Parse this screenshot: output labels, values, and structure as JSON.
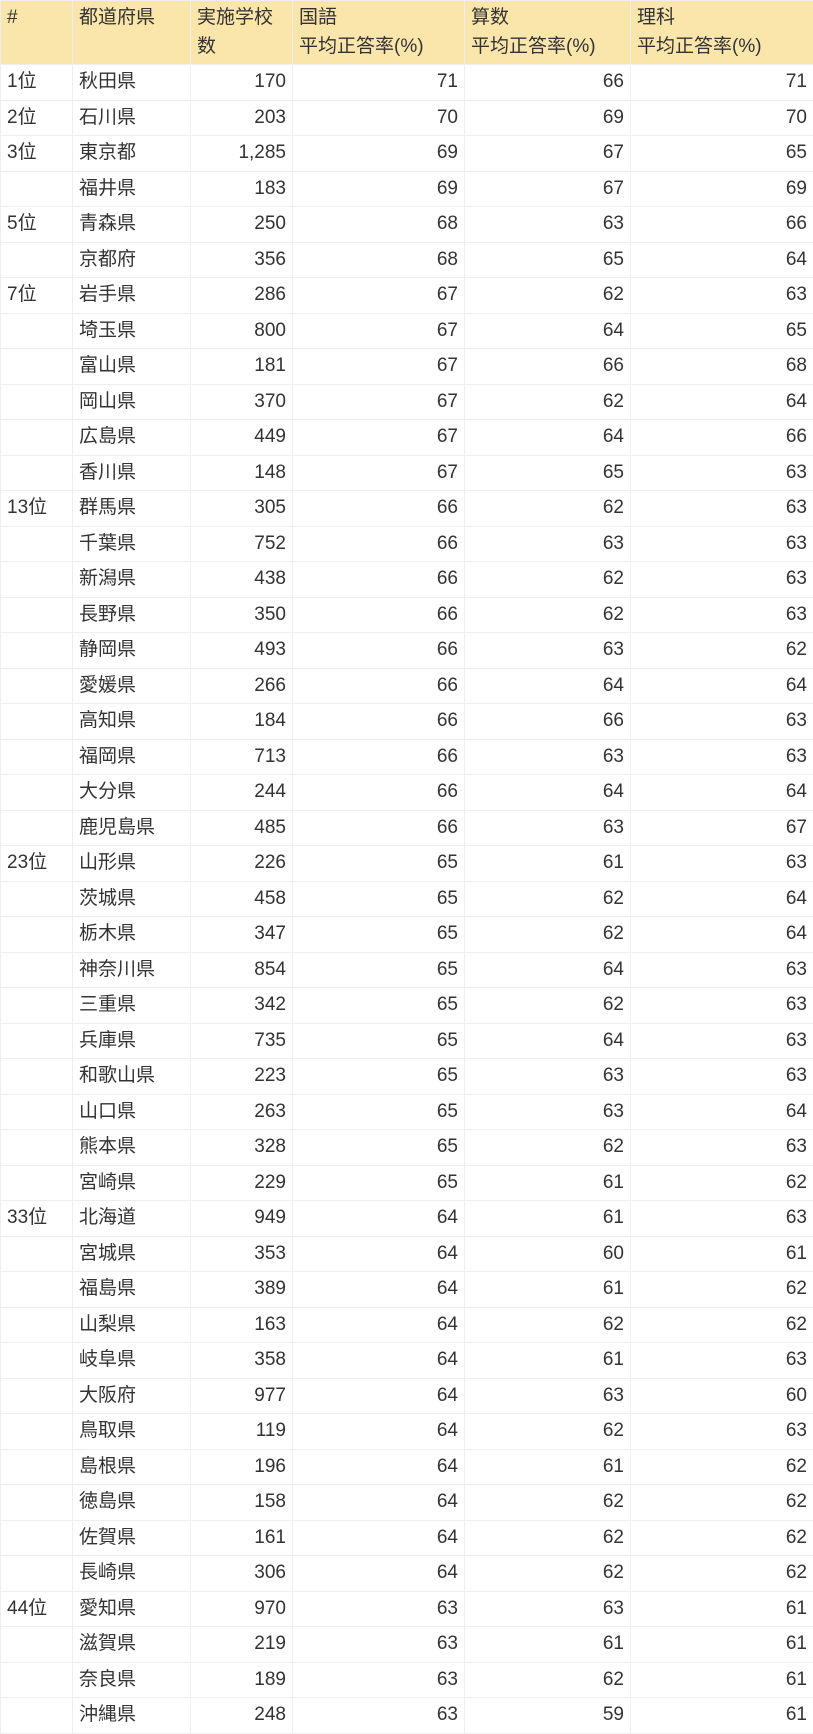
{
  "table": {
    "header_bg": "#fae5ab",
    "border_color": "#eeeeee",
    "text_color": "#333333",
    "columns": [
      {
        "key": "rank",
        "label_line1": "#",
        "label_line2": "",
        "align": "left"
      },
      {
        "key": "pref",
        "label_line1": "都道府県",
        "label_line2": "",
        "align": "left"
      },
      {
        "key": "schools",
        "label_line1": "実施学校数",
        "label_line2": "",
        "align": "right"
      },
      {
        "key": "kokugo",
        "label_line1": "国語",
        "label_line2": "平均正答率(%)",
        "align": "right"
      },
      {
        "key": "sansu",
        "label_line1": "算数",
        "label_line2": "平均正答率(%)",
        "align": "right"
      },
      {
        "key": "rika",
        "label_line1": "理科",
        "label_line2": "平均正答率(%)",
        "align": "right"
      }
    ],
    "rows": [
      {
        "rank": "1位",
        "pref": "秋田県",
        "schools": "170",
        "kokugo": "71",
        "sansu": "66",
        "rika": "71"
      },
      {
        "rank": "2位",
        "pref": "石川県",
        "schools": "203",
        "kokugo": "70",
        "sansu": "69",
        "rika": "70"
      },
      {
        "rank": "3位",
        "pref": "東京都",
        "schools": "1,285",
        "kokugo": "69",
        "sansu": "67",
        "rika": "65"
      },
      {
        "rank": "",
        "pref": "福井県",
        "schools": "183",
        "kokugo": "69",
        "sansu": "67",
        "rika": "69"
      },
      {
        "rank": "5位",
        "pref": "青森県",
        "schools": "250",
        "kokugo": "68",
        "sansu": "63",
        "rika": "66"
      },
      {
        "rank": "",
        "pref": "京都府",
        "schools": "356",
        "kokugo": "68",
        "sansu": "65",
        "rika": "64"
      },
      {
        "rank": "7位",
        "pref": "岩手県",
        "schools": "286",
        "kokugo": "67",
        "sansu": "62",
        "rika": "63"
      },
      {
        "rank": "",
        "pref": "埼玉県",
        "schools": "800",
        "kokugo": "67",
        "sansu": "64",
        "rika": "65"
      },
      {
        "rank": "",
        "pref": "富山県",
        "schools": "181",
        "kokugo": "67",
        "sansu": "66",
        "rika": "68"
      },
      {
        "rank": "",
        "pref": "岡山県",
        "schools": "370",
        "kokugo": "67",
        "sansu": "62",
        "rika": "64"
      },
      {
        "rank": "",
        "pref": "広島県",
        "schools": "449",
        "kokugo": "67",
        "sansu": "64",
        "rika": "66"
      },
      {
        "rank": "",
        "pref": "香川県",
        "schools": "148",
        "kokugo": "67",
        "sansu": "65",
        "rika": "63"
      },
      {
        "rank": "13位",
        "pref": "群馬県",
        "schools": "305",
        "kokugo": "66",
        "sansu": "62",
        "rika": "63"
      },
      {
        "rank": "",
        "pref": "千葉県",
        "schools": "752",
        "kokugo": "66",
        "sansu": "63",
        "rika": "63"
      },
      {
        "rank": "",
        "pref": "新潟県",
        "schools": "438",
        "kokugo": "66",
        "sansu": "62",
        "rika": "63"
      },
      {
        "rank": "",
        "pref": "長野県",
        "schools": "350",
        "kokugo": "66",
        "sansu": "62",
        "rika": "63"
      },
      {
        "rank": "",
        "pref": "静岡県",
        "schools": "493",
        "kokugo": "66",
        "sansu": "63",
        "rika": "62"
      },
      {
        "rank": "",
        "pref": "愛媛県",
        "schools": "266",
        "kokugo": "66",
        "sansu": "64",
        "rika": "64"
      },
      {
        "rank": "",
        "pref": "高知県",
        "schools": "184",
        "kokugo": "66",
        "sansu": "66",
        "rika": "63"
      },
      {
        "rank": "",
        "pref": "福岡県",
        "schools": "713",
        "kokugo": "66",
        "sansu": "63",
        "rika": "63"
      },
      {
        "rank": "",
        "pref": "大分県",
        "schools": "244",
        "kokugo": "66",
        "sansu": "64",
        "rika": "64"
      },
      {
        "rank": "",
        "pref": "鹿児島県",
        "schools": "485",
        "kokugo": "66",
        "sansu": "63",
        "rika": "67"
      },
      {
        "rank": "23位",
        "pref": "山形県",
        "schools": "226",
        "kokugo": "65",
        "sansu": "61",
        "rika": "63"
      },
      {
        "rank": "",
        "pref": "茨城県",
        "schools": "458",
        "kokugo": "65",
        "sansu": "62",
        "rika": "64"
      },
      {
        "rank": "",
        "pref": "栃木県",
        "schools": "347",
        "kokugo": "65",
        "sansu": "62",
        "rika": "64"
      },
      {
        "rank": "",
        "pref": "神奈川県",
        "schools": "854",
        "kokugo": "65",
        "sansu": "64",
        "rika": "63"
      },
      {
        "rank": "",
        "pref": "三重県",
        "schools": "342",
        "kokugo": "65",
        "sansu": "62",
        "rika": "63"
      },
      {
        "rank": "",
        "pref": "兵庫県",
        "schools": "735",
        "kokugo": "65",
        "sansu": "64",
        "rika": "63"
      },
      {
        "rank": "",
        "pref": "和歌山県",
        "schools": "223",
        "kokugo": "65",
        "sansu": "63",
        "rika": "63"
      },
      {
        "rank": "",
        "pref": "山口県",
        "schools": "263",
        "kokugo": "65",
        "sansu": "63",
        "rika": "64"
      },
      {
        "rank": "",
        "pref": "熊本県",
        "schools": "328",
        "kokugo": "65",
        "sansu": "62",
        "rika": "63"
      },
      {
        "rank": "",
        "pref": "宮崎県",
        "schools": "229",
        "kokugo": "65",
        "sansu": "61",
        "rika": "62"
      },
      {
        "rank": "33位",
        "pref": "北海道",
        "schools": "949",
        "kokugo": "64",
        "sansu": "61",
        "rika": "63"
      },
      {
        "rank": "",
        "pref": "宮城県",
        "schools": "353",
        "kokugo": "64",
        "sansu": "60",
        "rika": "61"
      },
      {
        "rank": "",
        "pref": "福島県",
        "schools": "389",
        "kokugo": "64",
        "sansu": "61",
        "rika": "62"
      },
      {
        "rank": "",
        "pref": "山梨県",
        "schools": "163",
        "kokugo": "64",
        "sansu": "62",
        "rika": "62"
      },
      {
        "rank": "",
        "pref": "岐阜県",
        "schools": "358",
        "kokugo": "64",
        "sansu": "61",
        "rika": "63"
      },
      {
        "rank": "",
        "pref": "大阪府",
        "schools": "977",
        "kokugo": "64",
        "sansu": "63",
        "rika": "60"
      },
      {
        "rank": "",
        "pref": "鳥取県",
        "schools": "119",
        "kokugo": "64",
        "sansu": "62",
        "rika": "63"
      },
      {
        "rank": "",
        "pref": "島根県",
        "schools": "196",
        "kokugo": "64",
        "sansu": "61",
        "rika": "62"
      },
      {
        "rank": "",
        "pref": "徳島県",
        "schools": "158",
        "kokugo": "64",
        "sansu": "62",
        "rika": "62"
      },
      {
        "rank": "",
        "pref": "佐賀県",
        "schools": "161",
        "kokugo": "64",
        "sansu": "62",
        "rika": "62"
      },
      {
        "rank": "",
        "pref": "長崎県",
        "schools": "306",
        "kokugo": "64",
        "sansu": "62",
        "rika": "62"
      },
      {
        "rank": "44位",
        "pref": "愛知県",
        "schools": "970",
        "kokugo": "63",
        "sansu": "63",
        "rika": "61"
      },
      {
        "rank": "",
        "pref": "滋賀県",
        "schools": "219",
        "kokugo": "63",
        "sansu": "61",
        "rika": "61"
      },
      {
        "rank": "",
        "pref": "奈良県",
        "schools": "189",
        "kokugo": "63",
        "sansu": "62",
        "rika": "61"
      },
      {
        "rank": "",
        "pref": "沖縄県",
        "schools": "248",
        "kokugo": "63",
        "sansu": "59",
        "rika": "61"
      }
    ]
  }
}
